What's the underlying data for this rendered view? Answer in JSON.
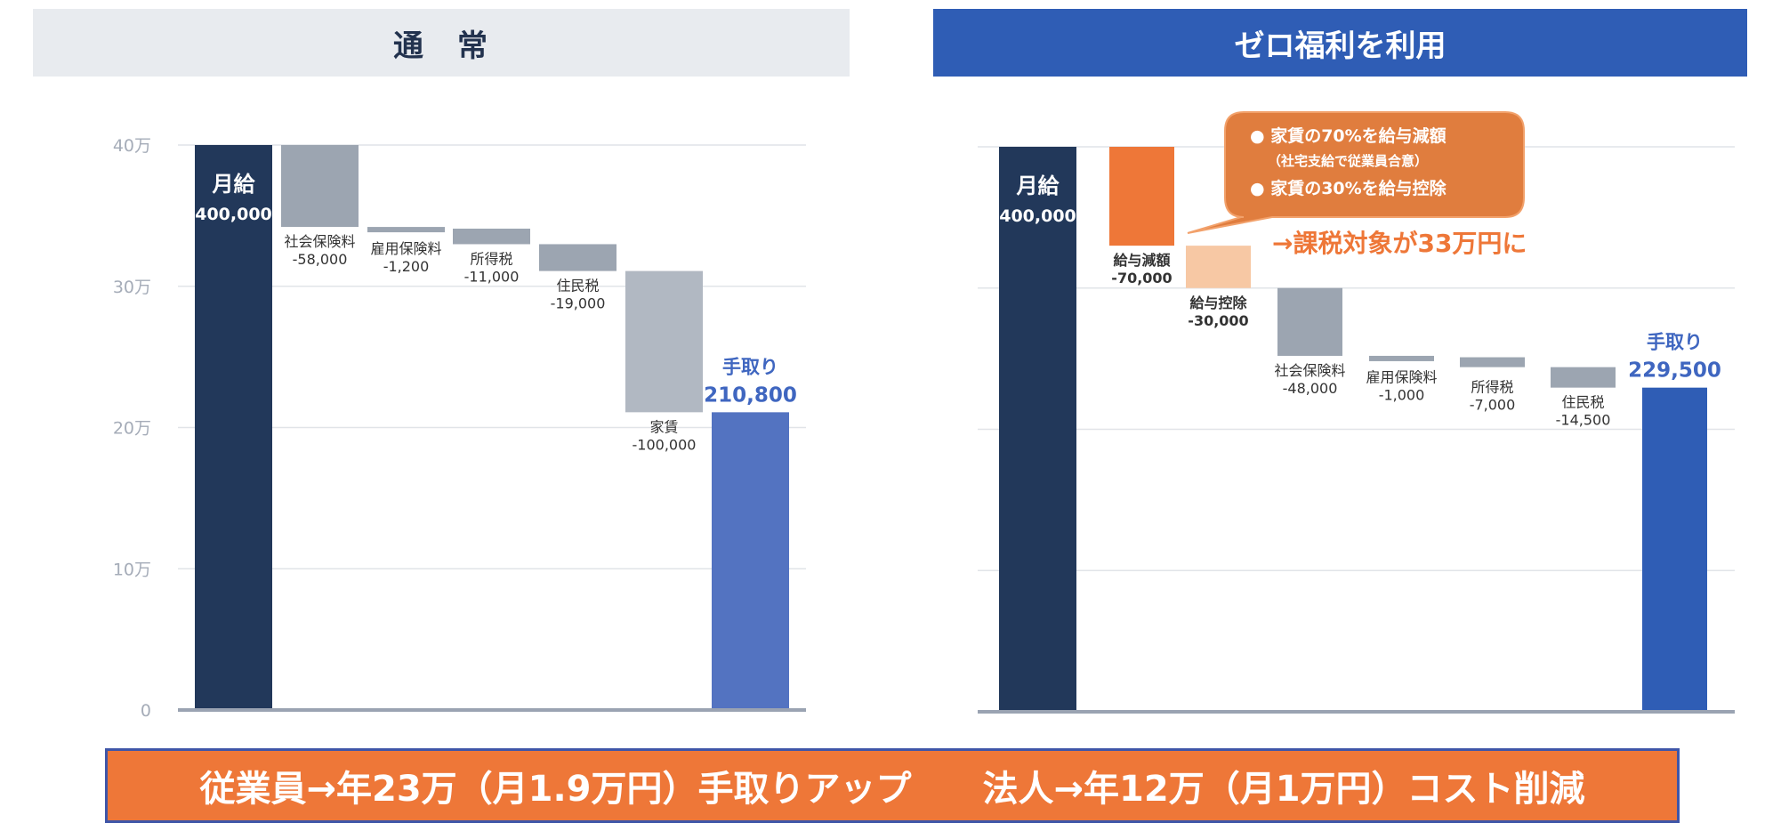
{
  "headers": {
    "left": "通　常",
    "right": "ゼロ福利を利用"
  },
  "colors": {
    "navy": "#22385a",
    "gray": "#9ca5b1",
    "light_gray": "#b1b8c2",
    "blue": "#5373c1",
    "blue_dark": "#2f5db5",
    "orange": "#ee7738",
    "peach": "#f7c8a4",
    "label_blue": "#3f66c0",
    "callout_bg": "#e07d3e",
    "grid": "#e1e4e8",
    "axis": "#9aa3b2",
    "tick": "#a5acb8"
  },
  "chart_data": [
    {
      "type": "waterfall",
      "title": "通　常",
      "ylim": [
        0,
        400000
      ],
      "yticks": [
        {
          "value": 0,
          "label": "0"
        },
        {
          "value": 100000,
          "label": "10万"
        },
        {
          "value": 200000,
          "label": "20万"
        },
        {
          "value": 300000,
          "label": "30万"
        },
        {
          "value": 400000,
          "label": "40万"
        }
      ],
      "bars": [
        {
          "kind": "total",
          "top": 400000,
          "bottom": 0,
          "name": "月給",
          "value_label": "400,000",
          "color": "navy"
        },
        {
          "kind": "decrease",
          "top": 400000,
          "bottom": 342000,
          "name": "社会保険料",
          "value_label": "-58,000",
          "color": "gray"
        },
        {
          "kind": "decrease",
          "top": 342000,
          "bottom": 340800,
          "name": "雇用保険料",
          "value_label": "-1,200",
          "color": "gray"
        },
        {
          "kind": "decrease",
          "top": 340800,
          "bottom": 329800,
          "name": "所得税",
          "value_label": "-11,000",
          "color": "gray"
        },
        {
          "kind": "decrease",
          "top": 329800,
          "bottom": 310800,
          "name": "住民税",
          "value_label": "-19,000",
          "color": "gray"
        },
        {
          "kind": "decrease",
          "top": 310800,
          "bottom": 210800,
          "name": "家賃",
          "value_label": "-100,000",
          "color": "light_gray"
        },
        {
          "kind": "result",
          "top": 210800,
          "bottom": 0,
          "name": "手取り",
          "value_label": "210,800",
          "color": "blue"
        }
      ]
    },
    {
      "type": "waterfall",
      "title": "ゼロ福利を利用",
      "ylim": [
        0,
        400000
      ],
      "bars": [
        {
          "kind": "total",
          "top": 400000,
          "bottom": 0,
          "name": "月給",
          "value_label": "400,000",
          "color": "navy"
        },
        {
          "kind": "decrease",
          "top": 400000,
          "bottom": 330000,
          "name": "給与減額",
          "value_label": "-70,000",
          "color": "orange"
        },
        {
          "kind": "decrease",
          "top": 330000,
          "bottom": 300000,
          "name": "給与控除",
          "value_label": "-30,000",
          "color": "peach"
        },
        {
          "kind": "decrease",
          "top": 300000,
          "bottom": 252000,
          "name": "社会保険料",
          "value_label": "-48,000",
          "color": "gray"
        },
        {
          "kind": "decrease",
          "top": 252000,
          "bottom": 251000,
          "name": "雇用保険料",
          "value_label": "-1,000",
          "color": "gray"
        },
        {
          "kind": "decrease",
          "top": 251000,
          "bottom": 244000,
          "name": "所得税",
          "value_label": "-7,000",
          "color": "gray"
        },
        {
          "kind": "decrease",
          "top": 244000,
          "bottom": 229500,
          "name": "住民税",
          "value_label": "-14,500",
          "color": "gray"
        },
        {
          "kind": "result",
          "top": 229500,
          "bottom": 0,
          "name": "手取り",
          "value_label": "229,500",
          "color": "blue_dark"
        }
      ],
      "callout": {
        "line1": "● 家賃の70%を給与減額",
        "line2": "（社宅支給で従業員合意）",
        "line3": "● 家賃の30%を給与控除"
      },
      "annotation": "→課税対象が33万円に"
    }
  ],
  "bottom": {
    "left": "従業員→年23万（月1.9万円）手取りアップ",
    "right": "法人→年12万（月1万円）コスト削減"
  }
}
